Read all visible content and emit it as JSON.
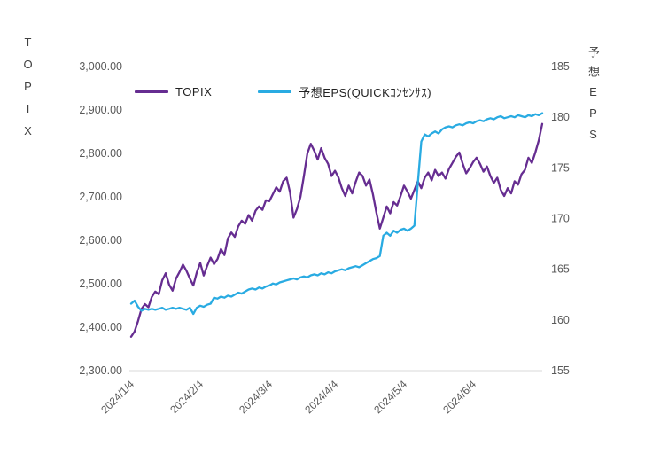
{
  "page": {
    "background": "#ffffff"
  },
  "chart_data": {
    "type": "line",
    "title": "",
    "grid": false,
    "legend_position": "top-inside",
    "left_axis": {
      "label": "TOPIX",
      "min": 2300,
      "max": 3000,
      "tick_labels": [
        "2,300.00",
        "2,400.00",
        "2,500.00",
        "2,600.00",
        "2,700.00",
        "2,800.00",
        "2,900.00",
        "3,000.00"
      ]
    },
    "right_axis": {
      "label": "予想EPS",
      "min": 155,
      "max": 185,
      "tick_labels": [
        "155",
        "160",
        "165",
        "170",
        "175",
        "180",
        "185"
      ]
    },
    "x_axis": {
      "tick_labels": [
        "2024/1/4",
        "2024/2/4",
        "2024/3/4",
        "2024/4/4",
        "2024/5/4",
        "2024/6/4"
      ],
      "tick_indices": [
        0,
        20,
        40,
        59,
        79,
        99
      ]
    },
    "series": [
      {
        "name": "TOPIX",
        "axis": "left",
        "color": "#662d91",
        "values": [
          2378,
          2390,
          2414,
          2442,
          2453,
          2446,
          2470,
          2482,
          2476,
          2508,
          2524,
          2498,
          2484,
          2512,
          2527,
          2544,
          2530,
          2512,
          2496,
          2526,
          2548,
          2519,
          2541,
          2560,
          2545,
          2557,
          2580,
          2566,
          2604,
          2618,
          2608,
          2632,
          2645,
          2638,
          2658,
          2645,
          2668,
          2678,
          2670,
          2692,
          2690,
          2706,
          2722,
          2712,
          2736,
          2744,
          2710,
          2652,
          2672,
          2700,
          2748,
          2800,
          2822,
          2806,
          2786,
          2812,
          2790,
          2776,
          2748,
          2760,
          2745,
          2720,
          2702,
          2726,
          2708,
          2734,
          2756,
          2748,
          2726,
          2740,
          2706,
          2664,
          2627,
          2652,
          2678,
          2662,
          2688,
          2680,
          2702,
          2726,
          2712,
          2696,
          2716,
          2736,
          2720,
          2744,
          2756,
          2738,
          2762,
          2748,
          2756,
          2742,
          2764,
          2778,
          2792,
          2802,
          2776,
          2754,
          2766,
          2780,
          2790,
          2776,
          2758,
          2770,
          2748,
          2732,
          2744,
          2716,
          2702,
          2720,
          2708,
          2736,
          2728,
          2752,
          2762,
          2790,
          2778,
          2802,
          2830,
          2868
        ]
      },
      {
        "name": "予想EPS(QUICKｺﾝｾﾝｻｽ)",
        "axis": "right",
        "color": "#29abe2",
        "values": [
          161.6,
          161.9,
          161.3,
          160.9,
          161.1,
          161.0,
          161.1,
          161.0,
          161.1,
          161.2,
          161.0,
          161.1,
          161.2,
          161.1,
          161.2,
          161.1,
          161.0,
          161.2,
          160.6,
          161.2,
          161.4,
          161.3,
          161.5,
          161.6,
          162.2,
          162.1,
          162.3,
          162.2,
          162.4,
          162.3,
          162.5,
          162.7,
          162.6,
          162.8,
          163.0,
          163.1,
          163.0,
          163.2,
          163.1,
          163.3,
          163.4,
          163.6,
          163.5,
          163.7,
          163.8,
          163.9,
          164.0,
          164.1,
          164.0,
          164.2,
          164.3,
          164.2,
          164.4,
          164.5,
          164.4,
          164.6,
          164.5,
          164.7,
          164.6,
          164.8,
          164.9,
          165.0,
          164.9,
          165.1,
          165.2,
          165.3,
          165.2,
          165.4,
          165.6,
          165.8,
          166.0,
          166.1,
          166.3,
          168.3,
          168.6,
          168.3,
          168.8,
          168.6,
          168.9,
          169.0,
          168.8,
          169.0,
          169.3,
          173.5,
          177.6,
          178.3,
          178.1,
          178.4,
          178.6,
          178.4,
          178.8,
          179.0,
          179.1,
          179.0,
          179.2,
          179.3,
          179.2,
          179.4,
          179.5,
          179.4,
          179.6,
          179.7,
          179.6,
          179.8,
          179.9,
          179.8,
          180.0,
          180.1,
          179.9,
          180.0,
          180.1,
          180.0,
          180.2,
          180.1,
          180.0,
          180.2,
          180.1,
          180.3,
          180.2,
          180.4
        ]
      }
    ]
  }
}
